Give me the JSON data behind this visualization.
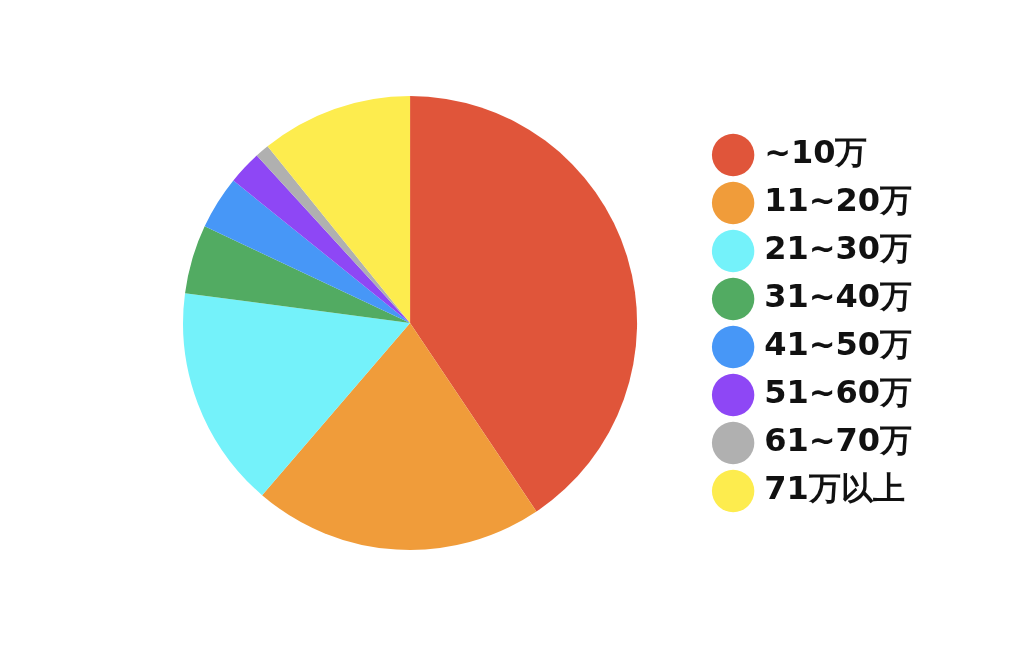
{
  "chart_data": {
    "type": "pie",
    "categories": [
      "~10万",
      "11~20万",
      "21~30万",
      "31~40万",
      "41~50万",
      "51~60万",
      "61~70万",
      "71万以上"
    ],
    "values": [
      40.6,
      20.7,
      15.8,
      4.9,
      3.8,
      2.4,
      1.0,
      10.8
    ],
    "colors": [
      "#e0553a",
      "#f09c3a",
      "#74f2fa",
      "#52ab62",
      "#4797f7",
      "#8e47f5",
      "#b0b0b0",
      "#fdec4e"
    ],
    "legend": "right"
  }
}
